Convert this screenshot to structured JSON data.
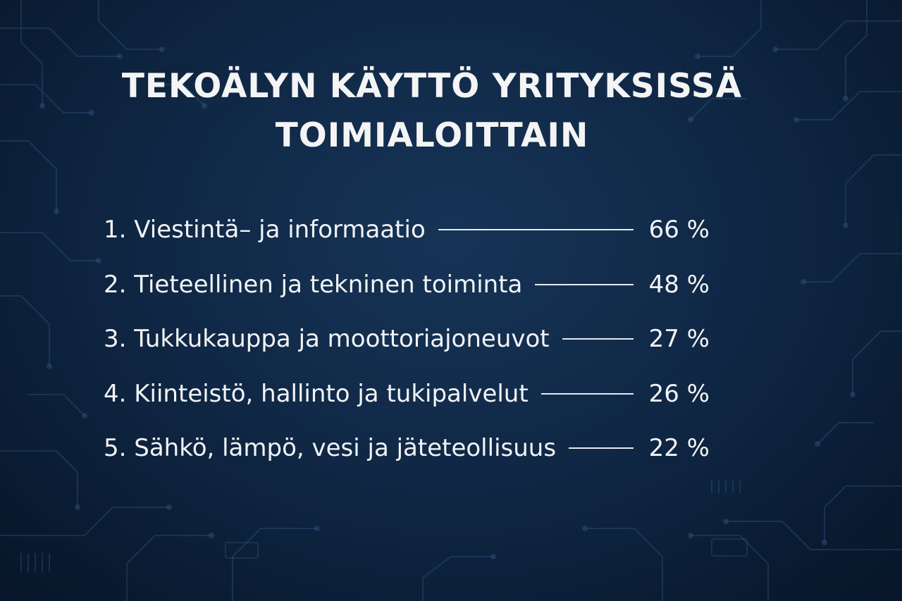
{
  "title": {
    "line1": "TEKOÄLYN KÄYTTÖ YRITYKSISSÄ",
    "line2": "TOIMIALOITTAIN"
  },
  "items": [
    {
      "label": "1. Viestintä– ja informaatio",
      "value": "66 %"
    },
    {
      "label": "2. Tieteellinen ja tekninen toiminta",
      "value": "48 %"
    },
    {
      "label": "3. Tukkukauppa ja moottoriajoneuvot",
      "value": "27 %"
    },
    {
      "label": "4. Kiinteistö, hallinto ja tukipalvelut",
      "value": "26 %"
    },
    {
      "label": "5. Sähkö, lämpö, vesi ja jäteteollisuus",
      "value": "22 %"
    }
  ],
  "colors": {
    "background": "#102846",
    "text": "#f2f3f5",
    "circuit": "#3f6a9a"
  }
}
